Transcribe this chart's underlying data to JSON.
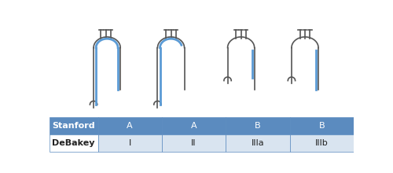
{
  "table_rows": [
    "Stanford",
    "DeBakey"
  ],
  "table_cols": [
    "",
    "I",
    "II",
    "IIIa",
    "IIIb"
  ],
  "stanford_values": [
    "A",
    "A",
    "B",
    "B"
  ],
  "debakey_values": [
    "I",
    "II",
    "IIIa",
    "IIIb"
  ],
  "header_bg": "#5b8bbf",
  "header_text": "#ffffff",
  "row2_bg": "#d9e4f0",
  "row2_text": "#222222",
  "label_bg": "#5b8bbf",
  "label_text": "#ffffff",
  "label2_bg": "#ffffff",
  "label2_text": "#222222",
  "border_color": "#5b8bbf",
  "aorta_line_color": "#555555",
  "dissection_color": "#5b9bd5",
  "bg_color": "#ffffff"
}
